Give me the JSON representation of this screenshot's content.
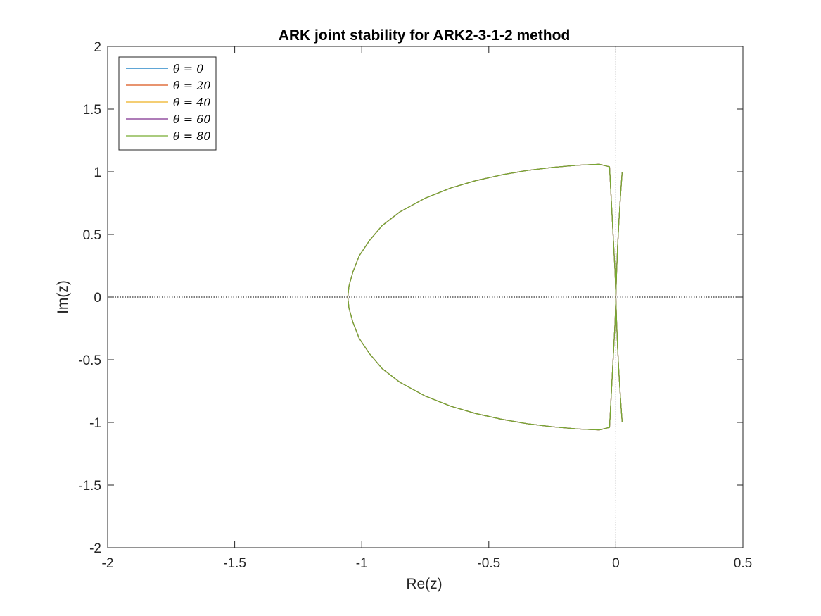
{
  "chart_data": {
    "type": "line",
    "title": "ARK joint stability for ARK2-3-1-2 method",
    "xlabel": "Re(z)",
    "ylabel": "Im(z)",
    "xlim": [
      -2,
      0.5
    ],
    "ylim": [
      -2,
      2
    ],
    "xticks": [
      -2,
      -1.5,
      -1,
      -0.5,
      0,
      0.5
    ],
    "xtick_labels": [
      "-2",
      "-1.5",
      "-1",
      "-0.5",
      "0",
      "0.5"
    ],
    "yticks": [
      -2,
      -1.5,
      -1,
      -0.5,
      0,
      0.5,
      1,
      1.5,
      2
    ],
    "ytick_labels": [
      "-2",
      "-1.5",
      "-1",
      "-0.5",
      "0",
      "0.5",
      "1",
      "1.5",
      "2"
    ],
    "grid": false,
    "legend_position": "top-left",
    "reference_lines": {
      "x": 0,
      "y": 0,
      "style": "dotted"
    },
    "boundary_curve": {
      "x": [
        0.025,
        0.018,
        0.012,
        0.007,
        0.003,
        0.0,
        -0.003,
        -0.025,
        -0.065,
        -0.15,
        -0.25,
        -0.35,
        -0.45,
        -0.55,
        -0.65,
        -0.75,
        -0.85,
        -0.92,
        -0.97,
        -1.01,
        -1.035,
        -1.05,
        -1.055,
        -1.05,
        -1.035,
        -1.01,
        -0.97,
        -0.92,
        -0.85,
        -0.75,
        -0.65,
        -0.55,
        -0.45,
        -0.35,
        -0.25,
        -0.15,
        -0.065,
        -0.025,
        -0.003,
        0.0,
        0.003,
        0.007,
        0.012,
        0.018,
        0.025
      ],
      "y": [
        1.0,
        0.8,
        0.6,
        0.4,
        0.2,
        0.0,
        0.2,
        1.04,
        1.06,
        1.052,
        1.035,
        1.01,
        0.975,
        0.93,
        0.87,
        0.79,
        0.68,
        0.57,
        0.45,
        0.33,
        0.2,
        0.09,
        0.0,
        -0.09,
        -0.2,
        -0.33,
        -0.45,
        -0.57,
        -0.68,
        -0.79,
        -0.87,
        -0.93,
        -0.975,
        -1.01,
        -1.035,
        -1.052,
        -1.06,
        -1.04,
        -0.2,
        0.0,
        -0.2,
        -0.4,
        -0.6,
        -0.8,
        -1.0
      ]
    },
    "series": [
      {
        "name": "θ = 0",
        "color": "#0072BD"
      },
      {
        "name": "θ = 20",
        "color": "#D95319"
      },
      {
        "name": "θ = 40",
        "color": "#EDB120"
      },
      {
        "name": "θ = 60",
        "color": "#7E2F8E"
      },
      {
        "name": "θ = 80",
        "color": "#77AC30"
      }
    ]
  }
}
